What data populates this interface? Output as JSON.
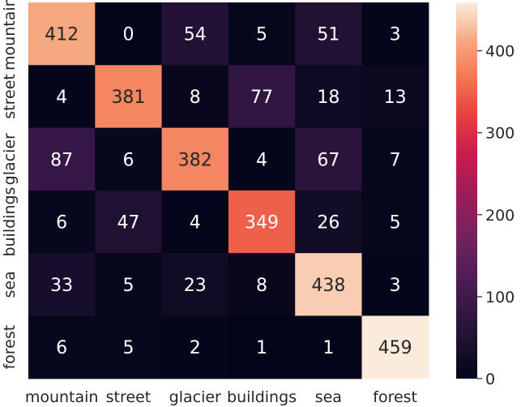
{
  "chart_data": {
    "type": "heatmap",
    "title": "",
    "xlabel": "",
    "ylabel": "",
    "x_categories": [
      "mountain",
      "street",
      "glacier",
      "buildings",
      "sea",
      "forest"
    ],
    "y_categories": [
      "mountain",
      "street",
      "glacier",
      "buildings",
      "sea",
      "forest"
    ],
    "values": [
      [
        412,
        0,
        54,
        5,
        51,
        3
      ],
      [
        4,
        381,
        8,
        77,
        18,
        13
      ],
      [
        87,
        6,
        382,
        4,
        67,
        7
      ],
      [
        6,
        47,
        4,
        349,
        26,
        5
      ],
      [
        33,
        5,
        23,
        8,
        438,
        3
      ],
      [
        6,
        5,
        2,
        1,
        1,
        459
      ]
    ],
    "colorbar": {
      "vmin": 0,
      "vmax": 459,
      "ticks": [
        0,
        100,
        200,
        300,
        400
      ],
      "colormap": "rocket"
    },
    "grid": false,
    "legend": "colorbar-right"
  }
}
